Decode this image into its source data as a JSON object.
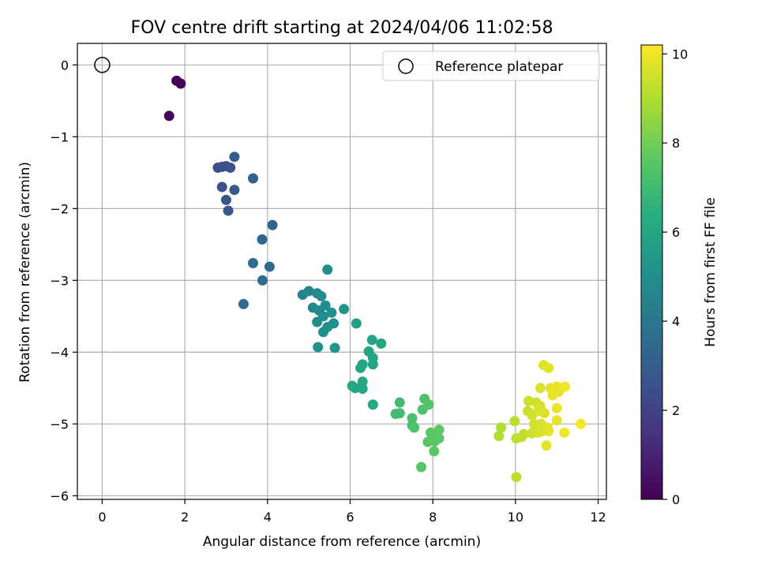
{
  "chart_data": {
    "type": "scatter",
    "title": "FOV centre drift starting at 2024/04/06 11:02:58",
    "xlabel": "Angular distance from reference (arcmin)",
    "ylabel": "Rotation from reference (arcmin)",
    "xlim": [
      -0.6,
      12.2
    ],
    "ylim": [
      -6.05,
      0.3
    ],
    "xticks": [
      0,
      2,
      4,
      6,
      8,
      10,
      12
    ],
    "yticks": [
      0,
      -1,
      -2,
      -3,
      -4,
      -5,
      -6
    ],
    "grid": true,
    "legend": {
      "position": "top-right",
      "entries": [
        "Reference platepar"
      ]
    },
    "reference_point": {
      "x": 0,
      "y": 0,
      "label": "Reference platepar"
    },
    "colorbar": {
      "label": "Hours from first FF file",
      "colormap": "viridis",
      "range": [
        0,
        10.2
      ],
      "ticks": [
        0,
        2,
        4,
        6,
        8,
        10
      ]
    },
    "points": [
      {
        "x": 1.8,
        "y": -0.22,
        "h": 0.0
      },
      {
        "x": 1.9,
        "y": -0.26,
        "h": 0.1
      },
      {
        "x": 1.62,
        "y": -0.71,
        "h": 0.2
      },
      {
        "x": 2.8,
        "y": -1.43,
        "h": 2.4
      },
      {
        "x": 2.9,
        "y": -1.42,
        "h": 2.5
      },
      {
        "x": 3.0,
        "y": -1.41,
        "h": 2.5
      },
      {
        "x": 3.1,
        "y": -1.43,
        "h": 2.6
      },
      {
        "x": 3.2,
        "y": -1.28,
        "h": 2.9
      },
      {
        "x": 2.9,
        "y": -1.7,
        "h": 2.6
      },
      {
        "x": 3.2,
        "y": -1.74,
        "h": 2.8
      },
      {
        "x": 3.0,
        "y": -1.88,
        "h": 2.7
      },
      {
        "x": 3.05,
        "y": -2.03,
        "h": 2.8
      },
      {
        "x": 3.65,
        "y": -1.58,
        "h": 3.1
      },
      {
        "x": 4.12,
        "y": -2.23,
        "h": 3.4
      },
      {
        "x": 3.87,
        "y": -2.43,
        "h": 3.4
      },
      {
        "x": 3.65,
        "y": -2.76,
        "h": 3.5
      },
      {
        "x": 4.05,
        "y": -2.81,
        "h": 3.5
      },
      {
        "x": 3.88,
        "y": -3.0,
        "h": 3.6
      },
      {
        "x": 3.42,
        "y": -3.33,
        "h": 3.6
      },
      {
        "x": 4.85,
        "y": -3.2,
        "h": 4.6
      },
      {
        "x": 5.0,
        "y": -3.15,
        "h": 4.7
      },
      {
        "x": 5.2,
        "y": -3.18,
        "h": 4.7
      },
      {
        "x": 5.3,
        "y": -3.22,
        "h": 4.8
      },
      {
        "x": 5.1,
        "y": -3.38,
        "h": 4.7
      },
      {
        "x": 5.25,
        "y": -3.42,
        "h": 4.8
      },
      {
        "x": 5.4,
        "y": -3.35,
        "h": 4.9
      },
      {
        "x": 5.55,
        "y": -3.45,
        "h": 5.0
      },
      {
        "x": 5.35,
        "y": -3.5,
        "h": 4.9
      },
      {
        "x": 5.2,
        "y": -3.58,
        "h": 4.9
      },
      {
        "x": 5.45,
        "y": -3.65,
        "h": 5.0
      },
      {
        "x": 5.6,
        "y": -3.6,
        "h": 5.1
      },
      {
        "x": 5.35,
        "y": -3.72,
        "h": 5.0
      },
      {
        "x": 5.45,
        "y": -2.85,
        "h": 4.9
      },
      {
        "x": 5.85,
        "y": -3.4,
        "h": 5.3
      },
      {
        "x": 5.22,
        "y": -3.93,
        "h": 5.1
      },
      {
        "x": 5.63,
        "y": -3.94,
        "h": 5.3
      },
      {
        "x": 6.15,
        "y": -3.6,
        "h": 5.7
      },
      {
        "x": 6.53,
        "y": -3.83,
        "h": 5.9
      },
      {
        "x": 6.75,
        "y": -3.88,
        "h": 6.0
      },
      {
        "x": 6.45,
        "y": -3.99,
        "h": 6.0
      },
      {
        "x": 6.55,
        "y": -4.08,
        "h": 6.1
      },
      {
        "x": 6.3,
        "y": -4.17,
        "h": 6.0
      },
      {
        "x": 6.55,
        "y": -4.17,
        "h": 6.1
      },
      {
        "x": 6.25,
        "y": -4.22,
        "h": 6.0
      },
      {
        "x": 6.3,
        "y": -4.41,
        "h": 6.1
      },
      {
        "x": 6.05,
        "y": -4.47,
        "h": 6.0
      },
      {
        "x": 6.12,
        "y": -4.5,
        "h": 6.0
      },
      {
        "x": 6.3,
        "y": -4.51,
        "h": 6.1
      },
      {
        "x": 6.55,
        "y": -4.73,
        "h": 6.2
      },
      {
        "x": 7.2,
        "y": -4.7,
        "h": 7.0
      },
      {
        "x": 7.1,
        "y": -4.86,
        "h": 7.0
      },
      {
        "x": 7.2,
        "y": -4.85,
        "h": 7.1
      },
      {
        "x": 7.5,
        "y": -4.92,
        "h": 7.2
      },
      {
        "x": 7.5,
        "y": -5.02,
        "h": 7.2
      },
      {
        "x": 7.55,
        "y": -5.05,
        "h": 7.3
      },
      {
        "x": 7.8,
        "y": -4.65,
        "h": 7.3
      },
      {
        "x": 7.75,
        "y": -4.8,
        "h": 7.3
      },
      {
        "x": 7.9,
        "y": -4.73,
        "h": 7.4
      },
      {
        "x": 7.95,
        "y": -5.12,
        "h": 7.5
      },
      {
        "x": 8.05,
        "y": -5.15,
        "h": 7.6
      },
      {
        "x": 8.15,
        "y": -5.08,
        "h": 7.6
      },
      {
        "x": 8.15,
        "y": -5.2,
        "h": 7.6
      },
      {
        "x": 7.88,
        "y": -5.25,
        "h": 7.5
      },
      {
        "x": 8.05,
        "y": -5.24,
        "h": 7.6
      },
      {
        "x": 8.03,
        "y": -5.38,
        "h": 7.6
      },
      {
        "x": 7.72,
        "y": -5.6,
        "h": 7.5
      },
      {
        "x": 9.65,
        "y": -5.05,
        "h": 9.0
      },
      {
        "x": 9.6,
        "y": -5.17,
        "h": 9.0
      },
      {
        "x": 9.98,
        "y": -4.96,
        "h": 9.2
      },
      {
        "x": 10.02,
        "y": -5.2,
        "h": 9.2
      },
      {
        "x": 10.2,
        "y": -5.14,
        "h": 9.3
      },
      {
        "x": 10.15,
        "y": -5.18,
        "h": 9.3
      },
      {
        "x": 10.3,
        "y": -4.82,
        "h": 9.4
      },
      {
        "x": 10.32,
        "y": -4.68,
        "h": 9.4
      },
      {
        "x": 10.4,
        "y": -4.88,
        "h": 9.5
      },
      {
        "x": 10.45,
        "y": -5.0,
        "h": 9.5
      },
      {
        "x": 10.5,
        "y": -4.7,
        "h": 9.5
      },
      {
        "x": 10.55,
        "y": -4.82,
        "h": 9.6
      },
      {
        "x": 10.6,
        "y": -4.5,
        "h": 9.6
      },
      {
        "x": 10.6,
        "y": -4.75,
        "h": 9.6
      },
      {
        "x": 10.62,
        "y": -5.0,
        "h": 9.6
      },
      {
        "x": 10.65,
        "y": -5.1,
        "h": 9.7
      },
      {
        "x": 10.55,
        "y": -5.12,
        "h": 9.6
      },
      {
        "x": 10.4,
        "y": -5.13,
        "h": 9.5
      },
      {
        "x": 10.68,
        "y": -4.18,
        "h": 9.7
      },
      {
        "x": 10.8,
        "y": -4.22,
        "h": 9.8
      },
      {
        "x": 10.7,
        "y": -4.85,
        "h": 9.7
      },
      {
        "x": 10.78,
        "y": -5.05,
        "h": 9.8
      },
      {
        "x": 10.8,
        "y": -5.1,
        "h": 9.8
      },
      {
        "x": 10.85,
        "y": -4.5,
        "h": 9.8
      },
      {
        "x": 10.9,
        "y": -4.6,
        "h": 9.9
      },
      {
        "x": 11.0,
        "y": -4.48,
        "h": 9.9
      },
      {
        "x": 10.95,
        "y": -4.55,
        "h": 9.9
      },
      {
        "x": 11.05,
        "y": -4.55,
        "h": 9.9
      },
      {
        "x": 11.0,
        "y": -4.78,
        "h": 9.9
      },
      {
        "x": 11.0,
        "y": -4.95,
        "h": 9.9
      },
      {
        "x": 11.2,
        "y": -4.48,
        "h": 10.0
      },
      {
        "x": 11.18,
        "y": -5.12,
        "h": 10.0
      },
      {
        "x": 10.75,
        "y": -5.3,
        "h": 9.8
      },
      {
        "x": 11.58,
        "y": -5.0,
        "h": 10.1
      },
      {
        "x": 10.02,
        "y": -5.74,
        "h": 9.2
      }
    ]
  }
}
